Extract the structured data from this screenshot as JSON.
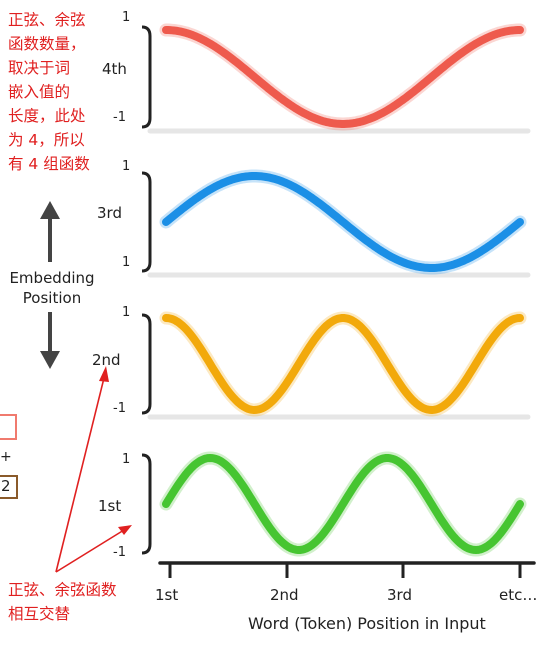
{
  "annotation_top": [
    "正弦、余弦",
    "函数数量，",
    "取决于词",
    "嵌入值的",
    "长度，此处",
    "为 4，所以",
    "有 4 组函数"
  ],
  "annotation_bottom": [
    "正弦、余弦函数",
    "相互交替"
  ],
  "side_label": [
    "Embedding",
    "Position"
  ],
  "edge_fragments": {
    "plus": "+",
    "two": "2"
  },
  "y_tick_max": "1",
  "y_tick_min": "-1",
  "rows": [
    {
      "label": "4th",
      "color": "#ee5a4d",
      "func": "cos",
      "freq": 1
    },
    {
      "label": "3rd",
      "color": "#1b8fe6",
      "func": "sin",
      "freq": 1
    },
    {
      "label": "2nd",
      "color": "#f2a90b",
      "func": "cos",
      "freq": 2
    },
    {
      "label": "1st",
      "color": "#46c531",
      "func": "sin",
      "freq": 2
    }
  ],
  "x_ticks": [
    "1st",
    "2nd",
    "3rd",
    "etc…"
  ],
  "x_axis_label": "Word (Token) Position in Input",
  "colors": {
    "annotation": "#e02020",
    "axis": "#222222",
    "arrow": "#444444",
    "track": "#e6e6e6"
  }
}
